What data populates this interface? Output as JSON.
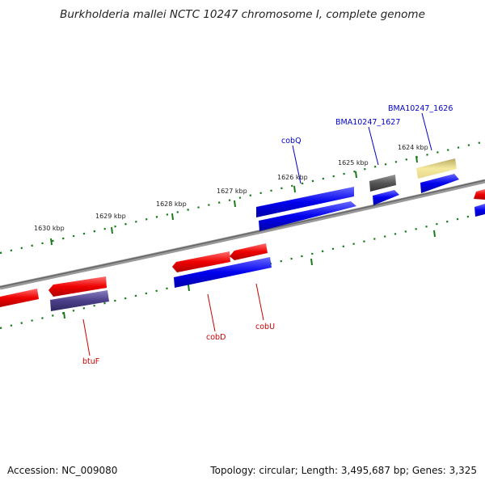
{
  "title": "Burkholderia mallei NCTC 10247 chromosome I, complete genome",
  "footer": {
    "accession": "Accession: NC_009080",
    "summary": "Topology: circular; Length: 3,495,687 bp; Genes: 3,325"
  },
  "ticks": [
    "1624 kbp",
    "1625 kbp",
    "1626 kbp",
    "1627 kbp",
    "1628 kbp",
    "1629 kbp",
    "1630 kbp"
  ],
  "gene_labels": {
    "bma1626": "BMA10247_1626",
    "bma1627": "BMA10247_1627",
    "cobQ": "cobQ",
    "cobD": "cobD",
    "cobU": "cobU",
    "btuF": "btuF"
  },
  "colors": {
    "forward_cds": "#0000ee",
    "reverse_cds": "#ee0000",
    "forward_label": "#0000cc",
    "reverse_label": "#cc0000",
    "tick": "#1a7a1a",
    "backbone": "#888888",
    "other_gene": "#555555",
    "pale_gene": "#f0e08a",
    "purple_gene": "#4b3f8a"
  }
}
